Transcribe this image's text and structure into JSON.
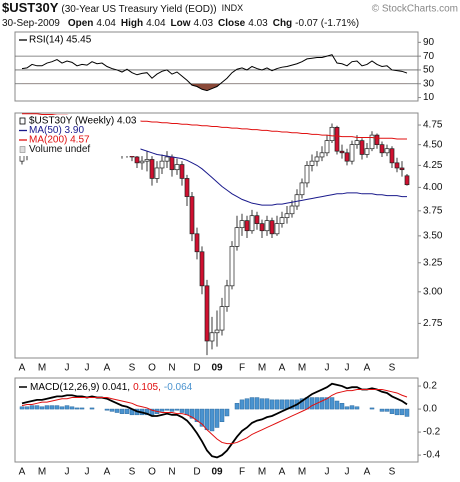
{
  "header": {
    "symbol": "$UST30Y",
    "name": "(30-Year US Treasury Yield (EOD))",
    "exchange": "INDX",
    "source": "© StockCharts.com",
    "date": "30-Sep-2009",
    "quote": [
      {
        "label": "Open",
        "value": "4.04"
      },
      {
        "label": "High",
        "value": "4.04"
      },
      {
        "label": "Low",
        "value": "4.03"
      },
      {
        "label": "Close",
        "value": "4.03"
      },
      {
        "label": "Chg",
        "value": "-0.07 (-1.71%)"
      }
    ]
  },
  "chart_data": [
    {
      "type": "line",
      "ylim": [
        5,
        105
      ],
      "yticks": [
        90,
        70,
        50,
        30,
        10
      ],
      "reference_lines": [
        70,
        50,
        30
      ],
      "fill_below_color": "#8a4a3a",
      "series": [
        {
          "name": "RSI(14) 45.45",
          "color": "#000000",
          "values": [
            52,
            53,
            58,
            56,
            56,
            60,
            62,
            65,
            60,
            63,
            61,
            56,
            58,
            57,
            62,
            59,
            60,
            55,
            52,
            50,
            47,
            51,
            46,
            43,
            45,
            46,
            38,
            44,
            48,
            50,
            44,
            47,
            41,
            35,
            28,
            26,
            22,
            20,
            23,
            26,
            32,
            38,
            46,
            51,
            53,
            50,
            55,
            52,
            50,
            53,
            49,
            52,
            54,
            55,
            57,
            59,
            62,
            66,
            67,
            68,
            68,
            70,
            72,
            60,
            59,
            56,
            62,
            63,
            56,
            58,
            63,
            58,
            55,
            56,
            50,
            49,
            48,
            45.45
          ]
        }
      ]
    },
    {
      "type": "candlestick",
      "log_scale": true,
      "ylim": [
        2.5,
        4.91
      ],
      "yticks": [
        4.75,
        {
          "value": 4.5,
          "label": "4.50"
        },
        4.25,
        {
          "value": 4,
          "label": "4.00"
        },
        3.75,
        {
          "value": 3.5,
          "label": "3.50"
        },
        3.25,
        {
          "value": 3,
          "label": "3.00"
        },
        2.75
      ],
      "categories": [
        "A",
        null,
        null,
        null,
        "M",
        null,
        null,
        null,
        null,
        "J",
        null,
        null,
        null,
        "J",
        null,
        null,
        null,
        "A",
        null,
        null,
        null,
        null,
        "S",
        null,
        null,
        null,
        "O",
        null,
        null,
        null,
        "N",
        null,
        null,
        null,
        null,
        "D",
        null,
        null,
        null,
        "09",
        null,
        null,
        null,
        null,
        "F",
        null,
        null,
        null,
        "M",
        null,
        null,
        null,
        "A",
        null,
        null,
        null,
        "M",
        null,
        null,
        null,
        null,
        "J",
        null,
        null,
        null,
        "J",
        null,
        null,
        null,
        "A",
        null,
        null,
        null,
        null,
        "S",
        null,
        null,
        null
      ],
      "annotations": [
        "Volume undef"
      ],
      "series": [
        {
          "name": "$UST30Y (Weekly) 4.03",
          "color": "#000000",
          "up_color": "#ffffff",
          "down_color": "#d01030",
          "open": [
            4.3,
            4.37,
            4.4,
            4.52,
            4.48,
            4.48,
            4.58,
            4.62,
            4.7,
            4.62,
            4.7,
            4.66,
            4.55,
            4.6,
            4.58,
            4.68,
            4.62,
            4.65,
            4.55,
            4.48,
            4.44,
            4.38,
            4.45,
            4.35,
            4.28,
            4.3,
            4.32,
            4.1,
            4.22,
            4.3,
            4.35,
            4.2,
            4.26,
            4.1,
            3.9,
            3.52,
            3.35,
            3.05,
            2.62,
            2.68,
            2.7,
            2.88,
            3.05,
            3.4,
            3.58,
            3.65,
            3.55,
            3.7,
            3.62,
            3.55,
            3.65,
            3.52,
            3.62,
            3.68,
            3.72,
            3.8,
            3.92,
            4.05,
            4.25,
            4.3,
            4.35,
            4.4,
            4.55,
            4.72,
            4.42,
            4.4,
            4.3,
            4.5,
            4.55,
            4.38,
            4.45,
            4.62,
            4.5,
            4.4,
            4.45,
            4.28,
            4.22,
            4.13
          ],
          "high": [
            4.42,
            4.46,
            4.57,
            4.58,
            4.54,
            4.62,
            4.68,
            4.74,
            4.76,
            4.75,
            4.74,
            4.69,
            4.64,
            4.66,
            4.72,
            4.73,
            4.7,
            4.67,
            4.59,
            4.52,
            4.48,
            4.5,
            4.49,
            4.4,
            4.36,
            4.42,
            4.36,
            4.3,
            4.38,
            4.42,
            4.38,
            4.33,
            4.3,
            4.14,
            3.95,
            3.58,
            3.4,
            3.1,
            2.8,
            2.85,
            2.95,
            3.1,
            3.45,
            3.7,
            3.72,
            3.7,
            3.76,
            3.74,
            3.66,
            3.7,
            3.68,
            3.7,
            3.74,
            3.8,
            3.86,
            3.98,
            4.1,
            4.3,
            4.38,
            4.42,
            4.48,
            4.62,
            4.77,
            4.74,
            4.5,
            4.45,
            4.55,
            4.62,
            4.58,
            4.52,
            4.67,
            4.64,
            4.54,
            4.5,
            4.48,
            4.34,
            4.3,
            4.15
          ],
          "low": [
            4.26,
            4.31,
            4.37,
            4.43,
            4.42,
            4.45,
            4.54,
            4.58,
            4.58,
            4.58,
            4.61,
            4.51,
            4.5,
            4.53,
            4.55,
            4.58,
            4.57,
            4.5,
            4.44,
            4.38,
            4.33,
            4.34,
            4.3,
            4.22,
            4.2,
            4.18,
            4.02,
            4.05,
            4.15,
            4.22,
            4.12,
            4.14,
            4.02,
            3.8,
            3.45,
            3.28,
            2.98,
            2.52,
            2.56,
            2.58,
            2.66,
            2.84,
            3.02,
            3.36,
            3.5,
            3.48,
            3.52,
            3.56,
            3.48,
            3.5,
            3.48,
            3.5,
            3.58,
            3.62,
            3.68,
            3.76,
            3.88,
            4.0,
            4.18,
            4.24,
            4.3,
            4.36,
            4.52,
            4.38,
            4.33,
            4.25,
            4.26,
            4.45,
            4.32,
            4.34,
            4.42,
            4.45,
            4.35,
            4.36,
            4.22,
            4.17,
            4.12,
            4.02
          ],
          "close": [
            4.37,
            4.4,
            4.52,
            4.48,
            4.48,
            4.58,
            4.62,
            4.7,
            4.62,
            4.7,
            4.66,
            4.55,
            4.6,
            4.58,
            4.68,
            4.62,
            4.65,
            4.55,
            4.48,
            4.44,
            4.38,
            4.45,
            4.35,
            4.28,
            4.3,
            4.32,
            4.1,
            4.22,
            4.3,
            4.35,
            4.2,
            4.26,
            4.1,
            3.9,
            3.52,
            3.35,
            3.05,
            2.62,
            2.68,
            2.7,
            2.88,
            3.05,
            3.4,
            3.58,
            3.65,
            3.55,
            3.7,
            3.62,
            3.55,
            3.65,
            3.52,
            3.62,
            3.68,
            3.72,
            3.8,
            3.92,
            4.05,
            4.25,
            4.3,
            4.35,
            4.4,
            4.55,
            4.72,
            4.42,
            4.4,
            4.3,
            4.5,
            4.55,
            4.38,
            4.45,
            4.62,
            4.5,
            4.4,
            4.45,
            4.28,
            4.22,
            4.2,
            4.03
          ]
        },
        {
          "name": "MA(50) 3.90",
          "kind": "line",
          "color": "#1a1a8c",
          "values": [
            4.42,
            4.44,
            4.46,
            4.48,
            4.5,
            4.52,
            4.55,
            4.58,
            4.62,
            4.65,
            4.67,
            4.66,
            4.65,
            4.63,
            4.61,
            4.6,
            4.59,
            4.58,
            4.56,
            4.54,
            4.52,
            4.5,
            4.48,
            4.46,
            4.44,
            4.42,
            4.4,
            4.38,
            4.37,
            4.36,
            4.35,
            4.34,
            4.33,
            4.31,
            4.28,
            4.25,
            4.21,
            4.16,
            4.11,
            4.06,
            4.01,
            3.97,
            3.93,
            3.9,
            3.87,
            3.85,
            3.83,
            3.82,
            3.81,
            3.81,
            3.81,
            3.82,
            3.82,
            3.83,
            3.84,
            3.85,
            3.86,
            3.87,
            3.88,
            3.89,
            3.9,
            3.91,
            3.92,
            3.93,
            3.93,
            3.94,
            3.94,
            3.94,
            3.93,
            3.93,
            3.93,
            3.92,
            3.92,
            3.91,
            3.91,
            3.91,
            3.9,
            3.9
          ]
        },
        {
          "name": "MA(200) 4.57",
          "kind": "line",
          "color": "#e01010",
          "values": [
            4.9,
            4.9,
            4.9,
            4.9,
            4.89,
            4.89,
            4.89,
            4.88,
            4.88,
            4.88,
            4.87,
            4.87,
            4.86,
            4.86,
            4.85,
            4.85,
            4.84,
            4.84,
            4.83,
            4.83,
            4.82,
            4.82,
            4.81,
            4.81,
            4.8,
            4.8,
            4.79,
            4.79,
            4.78,
            4.78,
            4.77,
            4.77,
            4.76,
            4.76,
            4.75,
            4.75,
            4.74,
            4.74,
            4.73,
            4.73,
            4.72,
            4.72,
            4.71,
            4.71,
            4.7,
            4.7,
            4.69,
            4.69,
            4.68,
            4.68,
            4.67,
            4.67,
            4.66,
            4.66,
            4.65,
            4.65,
            4.64,
            4.64,
            4.63,
            4.63,
            4.62,
            4.62,
            4.61,
            4.61,
            4.6,
            4.6,
            4.6,
            4.59,
            4.59,
            4.59,
            4.59,
            4.58,
            4.58,
            4.58,
            4.58,
            4.57,
            4.57,
            4.57
          ]
        }
      ]
    },
    {
      "type": "line",
      "legend_inline": true,
      "ylim": [
        -0.46,
        0.27
      ],
      "yticks": [
        0.2,
        {
          "value": 0,
          "label": "0.0"
        },
        -0.2,
        -0.4
      ],
      "categories": [
        "A",
        null,
        null,
        null,
        "M",
        null,
        null,
        null,
        null,
        "J",
        null,
        null,
        null,
        "J",
        null,
        null,
        null,
        "A",
        null,
        null,
        null,
        null,
        "S",
        null,
        null,
        null,
        "O",
        null,
        null,
        null,
        "N",
        null,
        null,
        null,
        null,
        "D",
        null,
        null,
        null,
        "09",
        null,
        null,
        null,
        null,
        "F",
        null,
        null,
        null,
        "M",
        null,
        null,
        null,
        "A",
        null,
        null,
        null,
        "M",
        null,
        null,
        null,
        null,
        "J",
        null,
        null,
        null,
        "J",
        null,
        null,
        null,
        "A",
        null,
        null,
        null,
        null,
        "S",
        null,
        null,
        null
      ],
      "series": [
        {
          "name": "-0.064",
          "kind": "bar",
          "color": "#4a93cf",
          "edge_color": "#2a6aa0",
          "values": [
            0.02,
            0.02,
            0.03,
            0.03,
            0.02,
            0.03,
            0.03,
            0.03,
            0.02,
            0.03,
            0.02,
            0.01,
            0.01,
            0,
            0.01,
            0,
            0,
            -0.01,
            -0.02,
            -0.03,
            -0.04,
            -0.04,
            -0.05,
            -0.05,
            -0.05,
            -0.05,
            -0.05,
            -0.04,
            -0.02,
            -0.01,
            -0.02,
            -0.01,
            -0.03,
            -0.05,
            -0.08,
            -0.11,
            -0.15,
            -0.18,
            -0.19,
            -0.16,
            -0.11,
            -0.06,
            0,
            0.05,
            0.08,
            0.09,
            0.1,
            0.1,
            0.09,
            0.09,
            0.08,
            0.08,
            0.08,
            0.08,
            0.08,
            0.08,
            0.09,
            0.1,
            0.1,
            0.1,
            0.1,
            0.1,
            0.1,
            0.07,
            0.05,
            0.02,
            0.03,
            0.02,
            0,
            0,
            0.01,
            0,
            -0.02,
            -0.02,
            -0.04,
            -0.05,
            -0.05,
            -0.064
          ]
        },
        {
          "name": "MACD(12,26,9) 0.041,",
          "kind": "line",
          "color": "#000000",
          "width": 1.8,
          "values": [
            0.05,
            0.06,
            0.07,
            0.08,
            0.08,
            0.09,
            0.1,
            0.11,
            0.11,
            0.12,
            0.12,
            0.11,
            0.11,
            0.1,
            0.11,
            0.1,
            0.1,
            0.09,
            0.07,
            0.05,
            0.03,
            0.02,
            0,
            -0.02,
            -0.03,
            -0.04,
            -0.06,
            -0.06,
            -0.05,
            -0.04,
            -0.05,
            -0.05,
            -0.07,
            -0.1,
            -0.15,
            -0.21,
            -0.28,
            -0.36,
            -0.41,
            -0.42,
            -0.4,
            -0.36,
            -0.3,
            -0.24,
            -0.19,
            -0.16,
            -0.12,
            -0.1,
            -0.09,
            -0.07,
            -0.06,
            -0.04,
            -0.02,
            0,
            0.02,
            0.04,
            0.07,
            0.1,
            0.13,
            0.15,
            0.17,
            0.19,
            0.22,
            0.21,
            0.2,
            0.18,
            0.19,
            0.19,
            0.17,
            0.17,
            0.18,
            0.17,
            0.15,
            0.14,
            0.11,
            0.09,
            0.07,
            0.041
          ]
        },
        {
          "name": "0.105,",
          "kind": "line",
          "color": "#e01010",
          "values": [
            0.03,
            0.04,
            0.04,
            0.05,
            0.06,
            0.06,
            0.07,
            0.08,
            0.09,
            0.09,
            0.1,
            0.1,
            0.1,
            0.1,
            0.1,
            0.1,
            0.1,
            0.1,
            0.09,
            0.08,
            0.07,
            0.06,
            0.05,
            0.03,
            0.02,
            0.01,
            -0.01,
            -0.02,
            -0.03,
            -0.03,
            -0.03,
            -0.04,
            -0.04,
            -0.05,
            -0.07,
            -0.1,
            -0.13,
            -0.18,
            -0.22,
            -0.26,
            -0.29,
            -0.3,
            -0.3,
            -0.29,
            -0.27,
            -0.25,
            -0.22,
            -0.2,
            -0.18,
            -0.16,
            -0.14,
            -0.12,
            -0.1,
            -0.08,
            -0.06,
            -0.04,
            -0.02,
            0,
            0.03,
            0.05,
            0.07,
            0.09,
            0.12,
            0.14,
            0.15,
            0.16,
            0.16,
            0.17,
            0.17,
            0.17,
            0.17,
            0.17,
            0.17,
            0.16,
            0.15,
            0.14,
            0.12,
            0.105
          ]
        }
      ]
    }
  ]
}
